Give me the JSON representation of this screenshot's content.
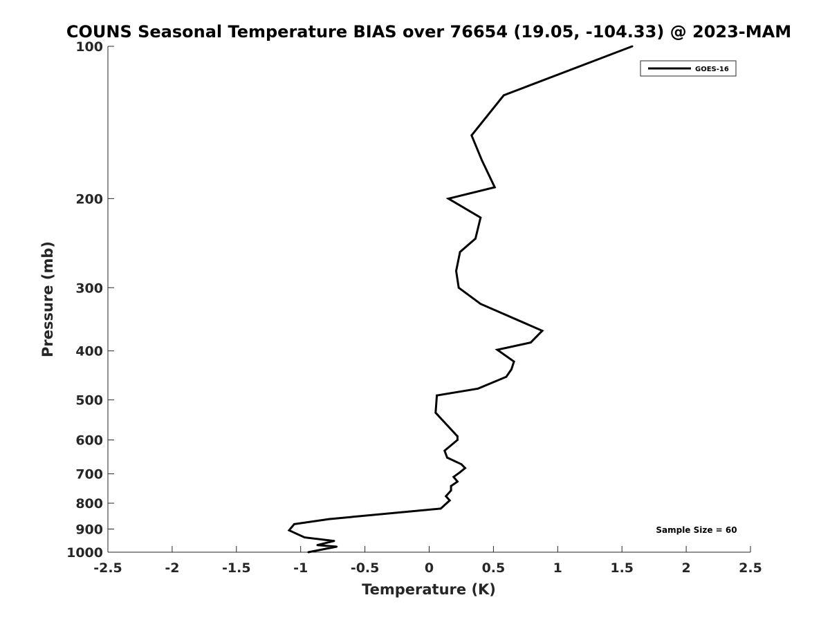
{
  "chart_data": {
    "type": "line",
    "title": "COUNS Seasonal Temperature BIAS over 76654 (19.05, -104.33) @ 2023-MAM",
    "xlabel": "Temperature (K)",
    "ylabel": "Pressure (mb)",
    "xlim": [
      -2.5,
      2.5
    ],
    "ylim": [
      1000,
      100
    ],
    "y_scale": "log",
    "y_reversed": true,
    "x_ticks": [
      "-2.5",
      "-2",
      "-1.5",
      "-1",
      "-0.5",
      "0",
      "0.5",
      "1",
      "1.5",
      "2",
      "2.5"
    ],
    "y_ticks": [
      "100",
      "200",
      "300",
      "400",
      "500",
      "600",
      "700",
      "800",
      "900",
      "1000"
    ],
    "grid": false,
    "legend_position": "top-right",
    "annotation": "Sample Size = 60",
    "line_color": "#000000",
    "series": [
      {
        "name": "GOES-16",
        "x": [
          1.58,
          0.58,
          0.33,
          0.41,
          0.51,
          0.15,
          0.4,
          0.36,
          0.24,
          0.21,
          0.23,
          0.4,
          0.88,
          0.79,
          0.53,
          0.66,
          0.64,
          0.6,
          0.38,
          0.06,
          0.05,
          0.22,
          0.22,
          0.12,
          0.14,
          0.25,
          0.28,
          0.24,
          0.19,
          0.22,
          0.17,
          0.17,
          0.13,
          0.16,
          0.09,
          -0.78,
          -1.05,
          -1.09,
          -0.97,
          -0.74,
          -0.87,
          -0.72,
          -0.94
        ],
        "y": [
          100,
          125,
          150,
          168,
          190,
          200,
          218,
          240,
          255,
          278,
          300,
          323,
          365,
          385,
          398,
          420,
          435,
          450,
          475,
          490,
          530,
          590,
          600,
          630,
          650,
          670,
          682,
          695,
          710,
          725,
          740,
          755,
          775,
          790,
          820,
          860,
          880,
          905,
          935,
          950,
          968,
          975,
          1000
        ]
      }
    ]
  }
}
